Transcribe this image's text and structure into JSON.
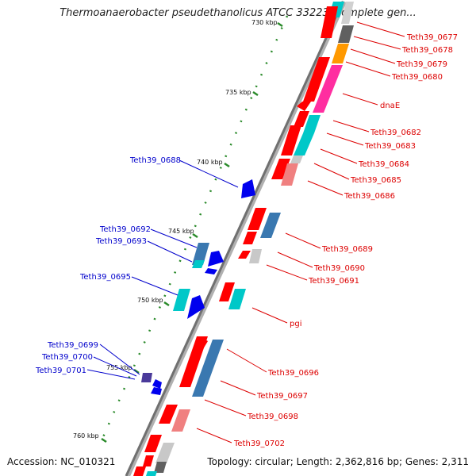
{
  "title": "Thermoanaerobacter pseudethanolicus ATCC 33223, complete gen...",
  "footer": {
    "accession": "Accession: NC_010321",
    "summary": "Topology: circular; Length: 2,362,816 bp; Genes: 2,311"
  },
  "scale_labels": [
    "730 kbp",
    "735 kbp",
    "740 kbp",
    "745 kbp",
    "750 kbp",
    "755 kbp",
    "760 kbp"
  ],
  "colors": {
    "forward_strand": "#ff0000",
    "reverse_strand": "#0000ee",
    "cyan_gene": "#00c8c8",
    "steel_gene": "#3a78b0",
    "magenta_gene": "#ff2ea0",
    "orange_gene": "#ff9900",
    "pink_gene": "#f08080",
    "grey_gene": "#c8c8c8",
    "dark_grey_gene": "#606060",
    "label_red": "#dd0000",
    "label_blue": "#0000cc",
    "tick_green": "#2a8a2a",
    "chromosome_track": "#808080"
  },
  "genes_right": [
    "Teth39_0677",
    "Teth39_0678",
    "Teth39_0679",
    "Teth39_0680",
    "dnaE",
    "Teth39_0682",
    "Teth39_0683",
    "Teth39_0684",
    "Teth39_0685",
    "Teth39_0686",
    "Teth39_0689",
    "Teth39_0690",
    "Teth39_0691",
    "pgi",
    "Teth39_0696",
    "Teth39_0697",
    "Teth39_0698",
    "Teth39_0702"
  ],
  "genes_left": [
    "Teth39_0688",
    "Teth39_0692",
    "Teth39_0693",
    "Teth39_0695",
    "Teth39_0699",
    "Teth39_0700",
    "Teth39_0701"
  ]
}
